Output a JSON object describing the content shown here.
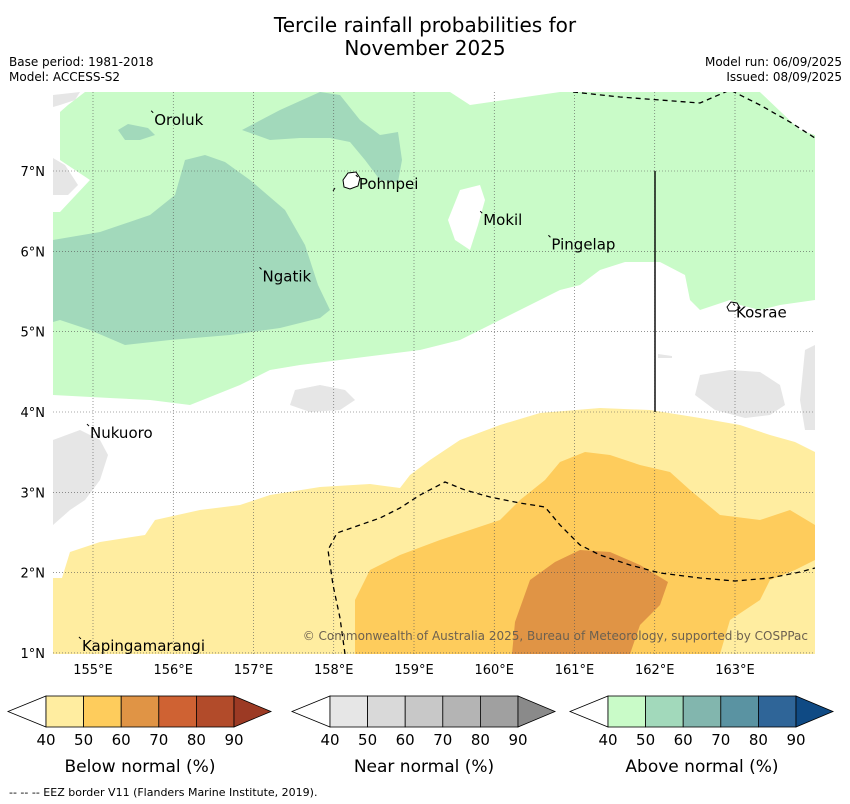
{
  "title_line1": "Tercile rainfall probabilities for",
  "title_line2": "November 2025",
  "base_period": "Base period: 1981-2018",
  "model": "Model: ACCESS-S2",
  "model_run": "Model run: 06/09/2025",
  "issued": "Issued: 08/09/2025",
  "copyright": "© Commonwealth of Australia 2025, Bureau of Meteorology, supported by COSPPac",
  "footer": "--  --  -- EEZ border V11 (Flanders Marine Institute, 2019).",
  "lon_ticks": [
    "155°E",
    "156°E",
    "157°E",
    "158°E",
    "159°E",
    "160°E",
    "161°E",
    "162°E",
    "163°E"
  ],
  "lon_values": [
    155,
    156,
    157,
    158,
    159,
    160,
    161,
    162,
    163
  ],
  "lat_ticks": [
    "7°N",
    "6°N",
    "5°N",
    "4°N",
    "3°N",
    "2°N",
    "1°N"
  ],
  "lat_values": [
    7,
    6,
    5,
    4,
    3,
    2,
    1
  ],
  "places": [
    {
      "name": "Oroluk",
      "lon": 155.75,
      "lat": 7.7
    },
    {
      "name": "Pohnpei",
      "lon": 158.3,
      "lat": 6.9
    },
    {
      "name": "Mokil",
      "lon": 159.85,
      "lat": 6.45
    },
    {
      "name": "Pingelap",
      "lon": 160.7,
      "lat": 6.15
    },
    {
      "name": "Ngatik",
      "lon": 157.1,
      "lat": 5.75
    },
    {
      "name": "Kosrae",
      "lon": 163.0,
      "lat": 5.3
    },
    {
      "name": "Nukuoro",
      "lon": 154.95,
      "lat": 3.8
    },
    {
      "name": "Kapingamarangi",
      "lon": 154.85,
      "lat": 1.15
    }
  ],
  "legends": [
    {
      "label": "Below normal (%)",
      "ticks": [
        "40",
        "50",
        "60",
        "70",
        "80",
        "90"
      ],
      "colors": [
        "#ffeda0",
        "#fecc5c",
        "#e09445",
        "#cf6233",
        "#b24b2a",
        "#9c3a24"
      ]
    },
    {
      "label": "Near normal (%)",
      "ticks": [
        "40",
        "50",
        "60",
        "70",
        "80",
        "90"
      ],
      "colors": [
        "#e6e6e6",
        "#d9d9d9",
        "#c8c8c8",
        "#b4b4b4",
        "#a0a0a0",
        "#8a8a8a"
      ]
    },
    {
      "label": "Above normal (%)",
      "ticks": [
        "40",
        "50",
        "60",
        "70",
        "80",
        "90"
      ],
      "colors": [
        "#c9fbc8",
        "#a2d9bb",
        "#82b6ae",
        "#5a93a2",
        "#2f6598",
        "#0f4a84"
      ]
    }
  ]
}
